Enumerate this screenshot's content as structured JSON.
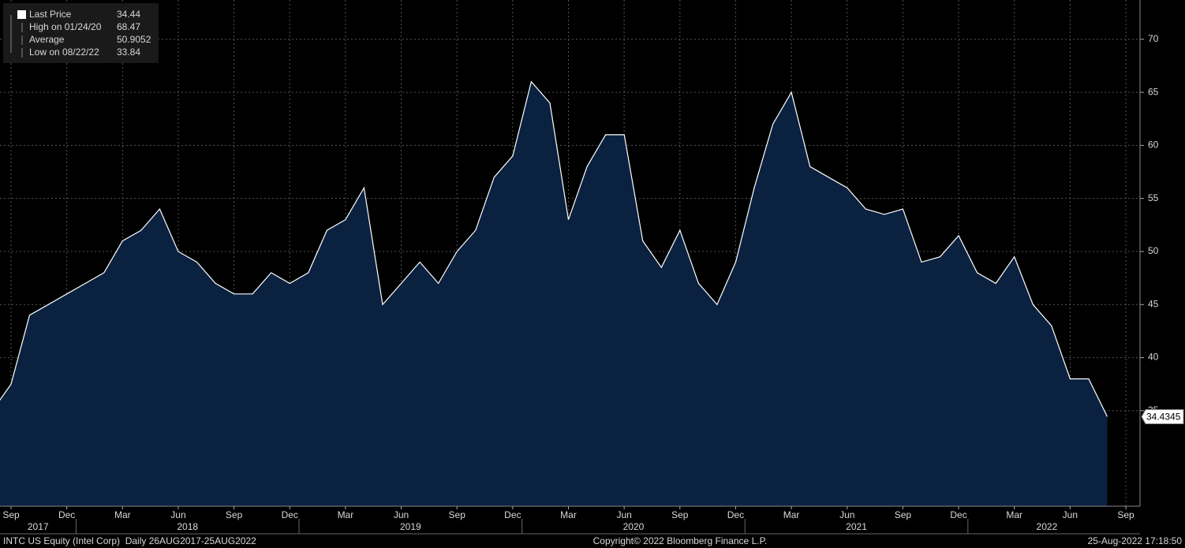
{
  "chart_data": {
    "type": "area",
    "series": [
      {
        "name": "Last Price",
        "color": "#ffffff",
        "fill": "#0b2140",
        "values": [
          35,
          37.5,
          44,
          45,
          46,
          47,
          48,
          51,
          52,
          54,
          50,
          49,
          47,
          46,
          46,
          48,
          47,
          48,
          52,
          53,
          56,
          45,
          47,
          49,
          47,
          50,
          52,
          57,
          59,
          66,
          64,
          53,
          58,
          61,
          61,
          51,
          48.5,
          52,
          47,
          45,
          49,
          56,
          62,
          65,
          58,
          57,
          56,
          54,
          53.5,
          54,
          49,
          49.5,
          51.5,
          48,
          47,
          49.5,
          45,
          43,
          38,
          38,
          34.44
        ]
      }
    ],
    "x": [
      "2017-08",
      "2017-09",
      "2017-10",
      "2017-11",
      "2017-12",
      "2018-01",
      "2018-02",
      "2018-03",
      "2018-04",
      "2018-05",
      "2018-06",
      "2018-07",
      "2018-08",
      "2018-09",
      "2018-10",
      "2018-11",
      "2018-12",
      "2019-01",
      "2019-02",
      "2019-03",
      "2019-04",
      "2019-05",
      "2019-06",
      "2019-07",
      "2019-08",
      "2019-09",
      "2019-10",
      "2019-11",
      "2019-12",
      "2020-01",
      "2020-02",
      "2020-03",
      "2020-04",
      "2020-05",
      "2020-06",
      "2020-07",
      "2020-08",
      "2020-09",
      "2020-10",
      "2020-11",
      "2020-12",
      "2021-01",
      "2021-02",
      "2021-03",
      "2021-04",
      "2021-05",
      "2021-06",
      "2021-07",
      "2021-08",
      "2021-09",
      "2021-10",
      "2021-11",
      "2021-12",
      "2022-01",
      "2022-02",
      "2022-03",
      "2022-04",
      "2022-05",
      "2022-06",
      "2022-07",
      "2022-08"
    ],
    "xlim": [
      "2017-08",
      "2022-09"
    ],
    "xticks": [
      {
        "value": "2017-09",
        "label": "Sep"
      },
      {
        "value": "2017-12",
        "label": "Dec"
      },
      {
        "value": "2018-03",
        "label": "Mar"
      },
      {
        "value": "2018-06",
        "label": "Jun"
      },
      {
        "value": "2018-09",
        "label": "Sep"
      },
      {
        "value": "2018-12",
        "label": "Dec"
      },
      {
        "value": "2019-03",
        "label": "Mar"
      },
      {
        "value": "2019-06",
        "label": "Jun"
      },
      {
        "value": "2019-09",
        "label": "Sep"
      },
      {
        "value": "2019-12",
        "label": "Dec"
      },
      {
        "value": "2020-03",
        "label": "Mar"
      },
      {
        "value": "2020-06",
        "label": "Jun"
      },
      {
        "value": "2020-09",
        "label": "Sep"
      },
      {
        "value": "2020-12",
        "label": "Dec"
      },
      {
        "value": "2021-03",
        "label": "Mar"
      },
      {
        "value": "2021-06",
        "label": "Jun"
      },
      {
        "value": "2021-09",
        "label": "Sep"
      },
      {
        "value": "2021-12",
        "label": "Dec"
      },
      {
        "value": "2022-03",
        "label": "Mar"
      },
      {
        "value": "2022-06",
        "label": "Jun"
      },
      {
        "value": "2022-09",
        "label": "Sep"
      }
    ],
    "x_year_ticks": [
      {
        "value": "2017-08",
        "label": "2017"
      },
      {
        "value": "2018-01",
        "label": "2018"
      },
      {
        "value": "2019-01",
        "label": "2019"
      },
      {
        "value": "2020-01",
        "label": "2020"
      },
      {
        "value": "2021-01",
        "label": "2021"
      },
      {
        "value": "2022-01",
        "label": "2022"
      }
    ],
    "ylim": [
      26,
      73.7
    ],
    "yticks": [
      35,
      40,
      45,
      50,
      55,
      60,
      65,
      70
    ],
    "grid": true,
    "legend_stats": [
      {
        "label": "Last Price",
        "value": 34.44
      },
      {
        "label": "High on 01/24/20",
        "value": 68.47
      },
      {
        "label": "Average",
        "value": 50.9052
      },
      {
        "label": "Low on 08/22/22",
        "value": 33.84
      }
    ],
    "last_price_tag": 34.4345,
    "footer_left": "INTC US Equity (Intel Corp)  Daily 26AUG2017-25AUG2022",
    "footer_center": "Copyright© 2022 Bloomberg Finance L.P.",
    "footer_right": "25-Aug-2022 17:18:50"
  }
}
